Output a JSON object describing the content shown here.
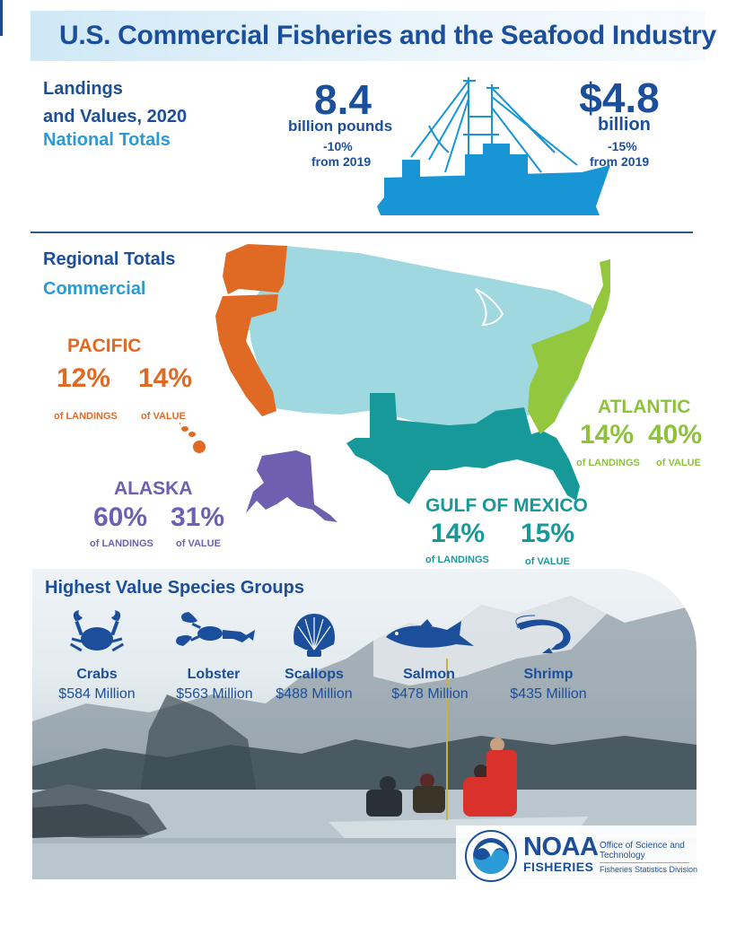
{
  "header": {
    "title": "U.S. Commercial Fisheries and the Seafood Industry"
  },
  "national": {
    "heading_line1": "Landings",
    "heading_line2": "and Values, 2020",
    "subheading": "National Totals",
    "landings": {
      "value": "8.4",
      "unit": "billion pounds",
      "change": "-10%",
      "since": "from 2019"
    },
    "values": {
      "value": "$4.8",
      "unit": "billion",
      "change": "-15%",
      "since": "from 2019"
    }
  },
  "regional": {
    "heading": "Regional Totals",
    "subheading": "Commercial",
    "colors": {
      "pacific": "#e06a24",
      "alaska": "#6f5fb0",
      "gulf": "#17999a",
      "atlantic": "#93c83e",
      "interior": "#9fd8df"
    },
    "regions": [
      {
        "key": "pacific",
        "name": "PACIFIC",
        "landings_pct": "12%",
        "value_pct": "14%",
        "landings_caption": "of LANDINGS",
        "value_caption": "of VALUE"
      },
      {
        "key": "alaska",
        "name": "ALASKA",
        "landings_pct": "60%",
        "value_pct": "31%",
        "landings_caption": "of LANDINGS",
        "value_caption": "of VALUE"
      },
      {
        "key": "gulf",
        "name": "GULF OF MEXICO",
        "landings_pct": "14%",
        "value_pct": "15%",
        "landings_caption": "of LANDINGS",
        "value_caption": "of VALUE"
      },
      {
        "key": "atlantic",
        "name": "ATLANTIC",
        "landings_pct": "14%",
        "value_pct": "40%",
        "landings_caption": "of LANDINGS",
        "value_caption": "of VALUE"
      }
    ]
  },
  "species": {
    "heading": "Highest Value Species Groups",
    "items": [
      {
        "name": "Crabs",
        "value": "$584 Million",
        "icon": "crab-icon"
      },
      {
        "name": "Lobster",
        "value": "$563 Million",
        "icon": "lobster-icon"
      },
      {
        "name": "Scallops",
        "value": "$488 Million",
        "icon": "scallop-icon"
      },
      {
        "name": "Salmon",
        "value": "$478 Million",
        "icon": "salmon-icon"
      },
      {
        "name": "Shrimp",
        "value": "$435 Million",
        "icon": "shrimp-icon"
      }
    ]
  },
  "footer": {
    "logo_word": "NOAA",
    "logo_sub": "FISHERIES",
    "office_line1": "Office of Science and",
    "office_line2": "Technology",
    "division": "Fisheries Statistics Division"
  }
}
